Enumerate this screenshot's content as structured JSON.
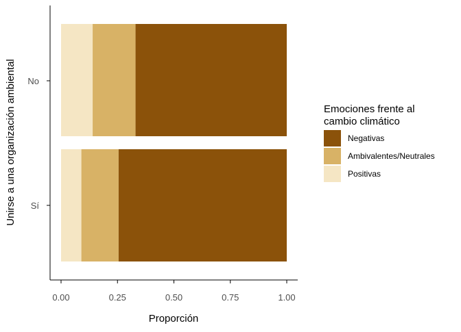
{
  "chart_data": {
    "type": "bar",
    "orientation": "horizontal",
    "stacked": true,
    "xlabel": "Proporción",
    "ylabel": "Unirse a una organización ambiental",
    "xlim": [
      0,
      1
    ],
    "x_ticks": [
      "0.00",
      "0.25",
      "0.50",
      "0.75",
      "1.00"
    ],
    "categories": [
      "No",
      "Sí"
    ],
    "series": [
      {
        "name": "Positivas",
        "color": "#F5E6C4",
        "values": [
          0.14,
          0.09
        ]
      },
      {
        "name": "Ambivalentes/Neutrales",
        "color": "#D8B266",
        "values": [
          0.19,
          0.165
        ]
      },
      {
        "name": "Negativas",
        "color": "#8B520A",
        "values": [
          0.67,
          0.745
        ]
      }
    ],
    "legend": {
      "title_lines": [
        "Emociones frente al",
        "cambio climático"
      ],
      "order": [
        "Negativas",
        "Ambivalentes/Neutrales",
        "Positivas"
      ],
      "position": "right"
    },
    "grid": false
  }
}
